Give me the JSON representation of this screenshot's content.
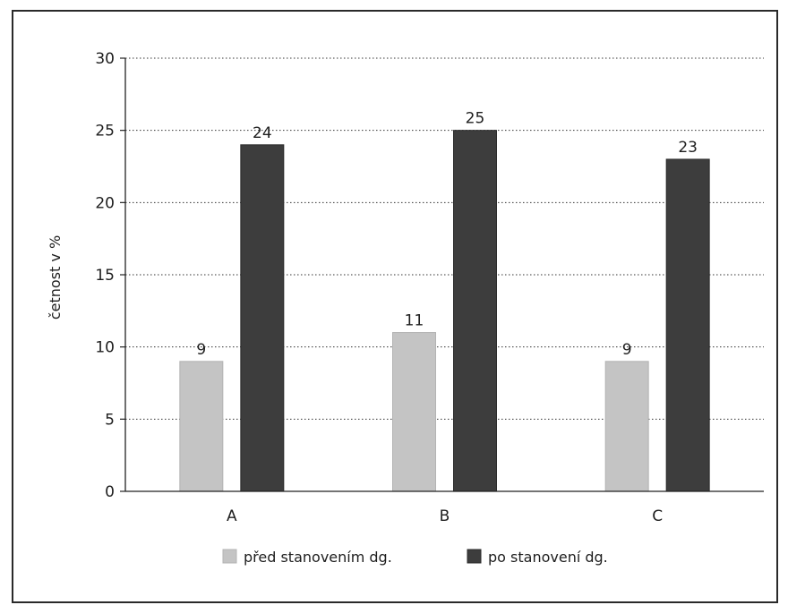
{
  "chart_data": {
    "type": "bar",
    "title": "",
    "xlabel": "",
    "ylabel": "četnost v %",
    "ylim": [
      0,
      30
    ],
    "yticks": [
      0,
      5,
      10,
      15,
      20,
      25,
      30
    ],
    "categories": [
      "A",
      "B",
      "C"
    ],
    "series": [
      {
        "name": "před stanovením dg.",
        "values": [
          9,
          11,
          9
        ],
        "color": "#c4c4c4"
      },
      {
        "name": "po stanovení dg.",
        "values": [
          24,
          25,
          23
        ],
        "color": "#3d3d3d"
      }
    ],
    "grid": true,
    "grid_style": "dotted",
    "legend_position": "bottom"
  }
}
